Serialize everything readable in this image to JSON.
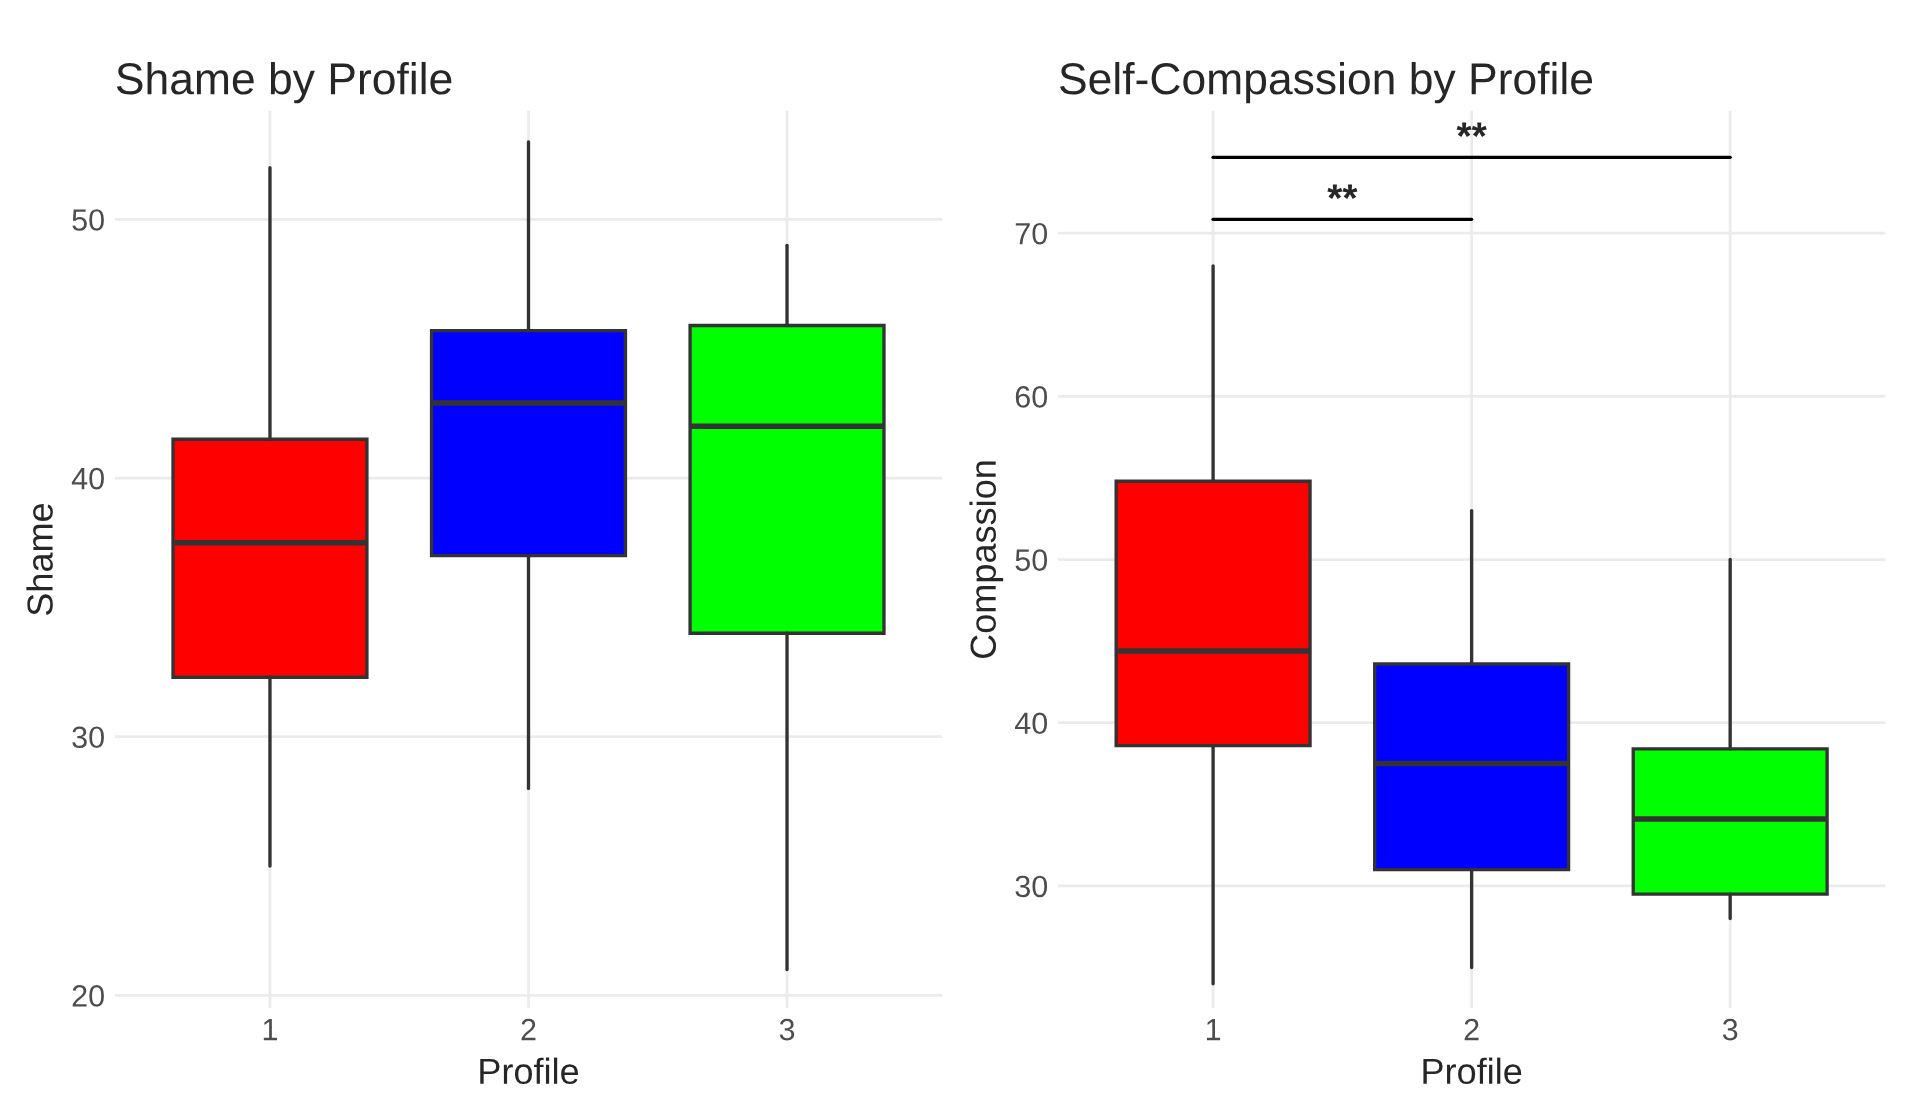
{
  "chart_data": [
    {
      "type": "box",
      "title": "Shame by Profile",
      "xlabel": "Profile",
      "ylabel": "Shame",
      "categories": [
        "1",
        "2",
        "3"
      ],
      "colors": [
        "#ff0000",
        "#0000ff",
        "#00ff00"
      ],
      "boxes": [
        {
          "low": 25,
          "q1": 32.3,
          "median": 37.5,
          "q3": 41.5,
          "high": 52
        },
        {
          "low": 28,
          "q1": 37,
          "median": 42.9,
          "q3": 45.7,
          "high": 53
        },
        {
          "low": 21,
          "q1": 34,
          "median": 42,
          "q3": 45.9,
          "high": 49
        }
      ],
      "ylim": [
        19.5,
        54.2
      ],
      "yticks": [
        20,
        30,
        40,
        50
      ],
      "grid": true,
      "legend": false
    },
    {
      "type": "box",
      "title": "Self-Compassion by Profile",
      "xlabel": "Profile",
      "ylabel": "Compassion",
      "categories": [
        "1",
        "2",
        "3"
      ],
      "colors": [
        "#ff0000",
        "#0000ff",
        "#00ff00"
      ],
      "boxes": [
        {
          "low": 24,
          "q1": 38.6,
          "median": 44.4,
          "q3": 54.8,
          "high": 68
        },
        {
          "low": 25,
          "q1": 31,
          "median": 37.5,
          "q3": 43.6,
          "high": 53
        },
        {
          "low": 28,
          "q1": 29.5,
          "median": 34.1,
          "q3": 38.4,
          "high": 50
        }
      ],
      "annotations": [
        "**",
        "**"
      ],
      "ylim": [
        22.5,
        77.5
      ],
      "yticks": [
        30,
        40,
        50,
        60,
        70
      ],
      "grid": true,
      "legend": false
    }
  ]
}
